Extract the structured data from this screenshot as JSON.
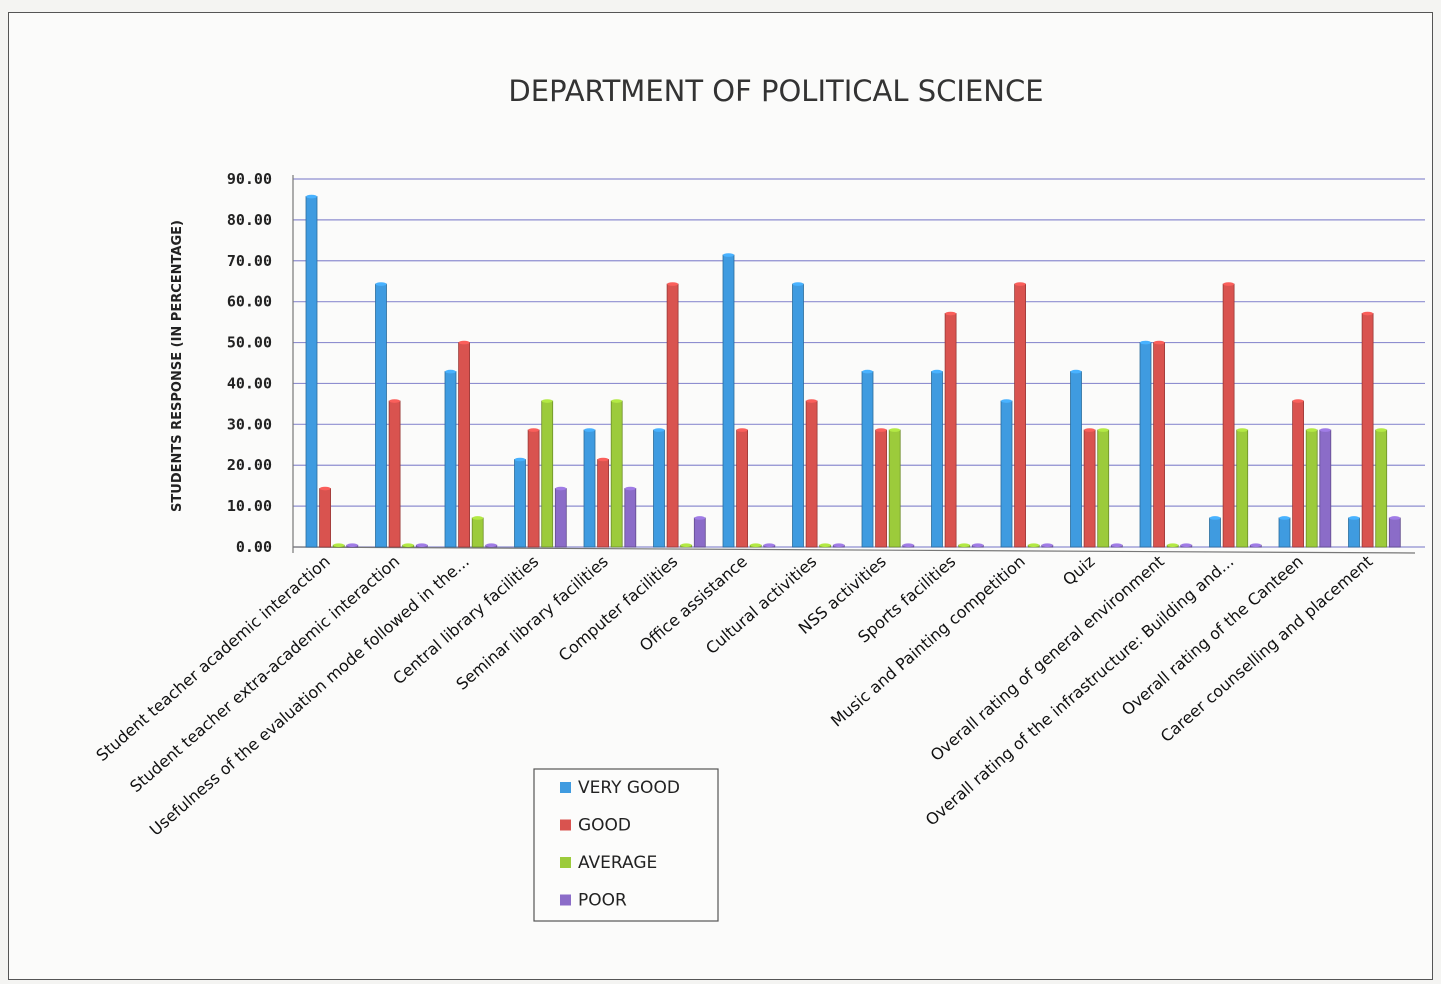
{
  "chart_data": {
    "type": "bar",
    "title": "DEPARTMENT OF POLITICAL SCIENCE",
    "xlabel": "",
    "ylabel": "STUDENTS RESPONSE (IN PERCENTAGE)",
    "ylim": [
      0,
      90
    ],
    "yticks": [
      "0.00",
      "10.00",
      "20.00",
      "30.00",
      "40.00",
      "50.00",
      "60.00",
      "70.00",
      "80.00",
      "90.00"
    ],
    "grid": true,
    "legend": "bottom-center",
    "categories": [
      "Student teacher academic interaction",
      "Student teacher extra-academic interaction",
      "Usefulness of the evaluation mode followed in the...",
      "Central library facilities",
      "Seminar library facilities",
      "Computer facilities",
      "Office assistance",
      "Cultural activities",
      "NSS activities",
      "Sports facilities",
      "Music and Painting competition",
      "Quiz",
      "Overall rating of general environment",
      "Overall rating of the infrastructure: Building and...",
      "Overall rating of the Canteen",
      "Career counselling and placement"
    ],
    "series": [
      {
        "name": "VERY GOOD",
        "color": "#3f9be0",
        "values": [
          85.7,
          64.3,
          42.9,
          21.4,
          28.6,
          28.6,
          71.4,
          64.3,
          42.9,
          42.9,
          35.7,
          42.9,
          50.0,
          7.1,
          7.1,
          7.1
        ]
      },
      {
        "name": "GOOD",
        "color": "#d9534f",
        "values": [
          14.3,
          35.7,
          50.0,
          28.6,
          21.4,
          64.3,
          28.6,
          35.7,
          28.6,
          57.1,
          64.3,
          28.6,
          50.0,
          64.3,
          35.7,
          57.1
        ]
      },
      {
        "name": "AVERAGE",
        "color": "#9ccb3b",
        "values": [
          0,
          0,
          7.1,
          35.7,
          35.7,
          0,
          0,
          0,
          28.6,
          0,
          0,
          28.6,
          0,
          28.6,
          28.6,
          28.6
        ]
      },
      {
        "name": "POOR",
        "color": "#8b6cc8",
        "values": [
          0,
          0,
          0,
          14.3,
          14.3,
          7.1,
          0,
          0,
          0,
          0,
          0,
          0,
          0,
          0,
          28.6,
          7.1
        ]
      }
    ]
  }
}
